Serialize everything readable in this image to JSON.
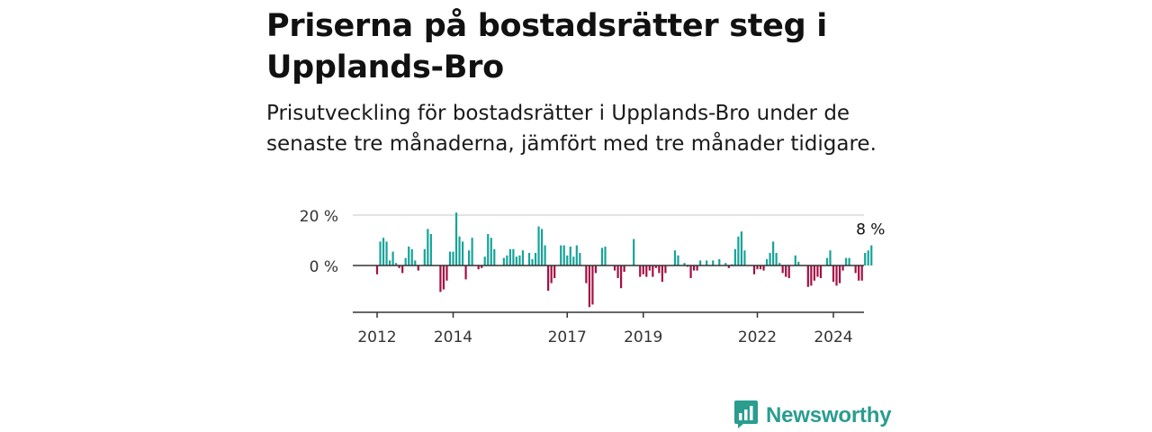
{
  "title": "Priserna på bostadsrätter steg i Upplands-Bro",
  "subtitle": "Prisutveckling för bostadsrätter i Upplands-Bro under de senaste tre månaderna, jämfört med tre månader tidigare.",
  "brand": {
    "name": "Newsworthy",
    "icon": "newsworthy-logo-icon",
    "color": "#2a9d8f"
  },
  "colors": {
    "positive": "#17a399",
    "negative": "#a50f44",
    "grid": "#d9d9d9",
    "axis": "#333333"
  },
  "chart_data": {
    "type": "bar",
    "title": "",
    "xlabel": "",
    "ylabel": "",
    "ylim": [
      -18,
      22
    ],
    "y_ticks": [
      {
        "value": 0,
        "label": "0 %"
      },
      {
        "value": 20,
        "label": "20 %"
      }
    ],
    "x_ticks": [
      {
        "value": 2012,
        "label": "2012"
      },
      {
        "value": 2014,
        "label": "2014"
      },
      {
        "value": 2017,
        "label": "2017"
      },
      {
        "value": 2019,
        "label": "2019"
      },
      {
        "value": 2022,
        "label": "2022"
      },
      {
        "value": 2024,
        "label": "2024"
      }
    ],
    "annotation": {
      "label": "8 %"
    },
    "grid": "horizontal",
    "start": "2012-01",
    "interval": "month",
    "values": [
      -3.5,
      9.5,
      11,
      9.5,
      2,
      5.5,
      1,
      -1,
      -3,
      3,
      7.5,
      6.5,
      2,
      -2,
      0,
      6.5,
      14.5,
      12.5,
      0,
      0,
      -10.5,
      -9.5,
      -6,
      5.5,
      5.5,
      21,
      11.5,
      9.5,
      -5.5,
      6,
      11,
      0,
      -1.5,
      -1,
      3.5,
      12.5,
      11,
      6.5,
      0,
      0,
      3,
      4,
      6.5,
      6.5,
      3.5,
      4,
      6,
      0,
      5,
      2.5,
      5,
      15.5,
      14.5,
      8,
      -10,
      -7,
      -5,
      0,
      8,
      8,
      4,
      7.5,
      3.5,
      8,
      5,
      0,
      -7,
      -16.5,
      -15.5,
      -3,
      0,
      7,
      7.5,
      0,
      0,
      -2,
      -5,
      -9,
      -2.5,
      0,
      0,
      10.5,
      0,
      -4.5,
      -3.5,
      -4.5,
      -2,
      -4.5,
      -1,
      -3,
      -6.5,
      -3,
      0,
      0,
      6,
      4,
      0,
      1,
      -0.5,
      -5,
      -2,
      -2,
      2,
      0,
      2,
      0,
      2,
      0,
      2.5,
      0,
      1,
      -1,
      0.5,
      6.5,
      11.5,
      13.5,
      6,
      0,
      0,
      -3.5,
      -1.5,
      -1.5,
      -2,
      2.5,
      5,
      9.5,
      5,
      1,
      -3,
      -4.5,
      -5,
      0,
      4,
      1.5,
      0,
      0,
      -8.5,
      -8,
      -6,
      -4.5,
      -5,
      0,
      3,
      6,
      -6.5,
      -8,
      -7,
      -2,
      3,
      3,
      0,
      -3,
      -6,
      -6,
      5,
      6,
      8
    ]
  }
}
